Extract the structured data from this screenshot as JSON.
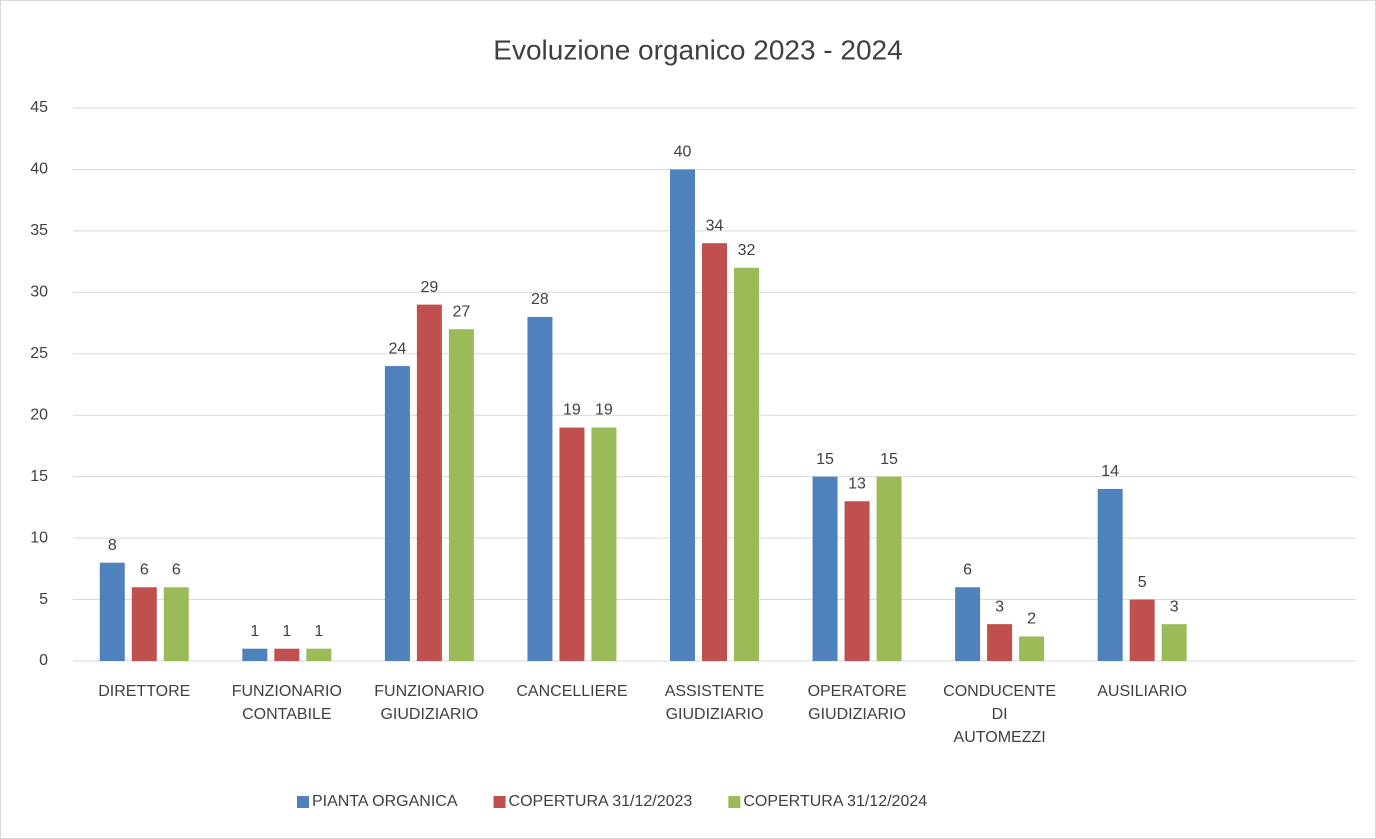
{
  "chart_data": {
    "type": "bar",
    "title": "Evoluzione organico 2023 - 2024",
    "categories": [
      "DIRETTORE",
      "FUNZIONARIO CONTABILE",
      "FUNZIONARIO GIUDIZIARIO",
      "CANCELLIERE",
      "ASSISTENTE GIUDIZIARIO",
      "OPERATORE GIUDIZIARIO",
      "CONDUCENTE DI AUTOMEZZI",
      "AUSILIARIO",
      null
    ],
    "series": [
      {
        "name": "PIANTA ORGANICA",
        "color": "#4f81bd",
        "values": [
          8,
          1,
          24,
          28,
          40,
          15,
          6,
          14,
          null
        ]
      },
      {
        "name": "COPERTURA 31/12/2023",
        "color": "#c0504d",
        "values": [
          6,
          1,
          29,
          19,
          34,
          13,
          3,
          5,
          null
        ]
      },
      {
        "name": "COPERTURA 31/12/2024",
        "color": "#9bbb59",
        "values": [
          6,
          1,
          27,
          19,
          32,
          15,
          2,
          3,
          null
        ]
      }
    ],
    "ylim": [
      0,
      45
    ],
    "yticks": [
      0,
      5,
      10,
      15,
      20,
      25,
      30,
      35,
      40,
      45
    ],
    "grid": true,
    "legend": "bottom"
  }
}
